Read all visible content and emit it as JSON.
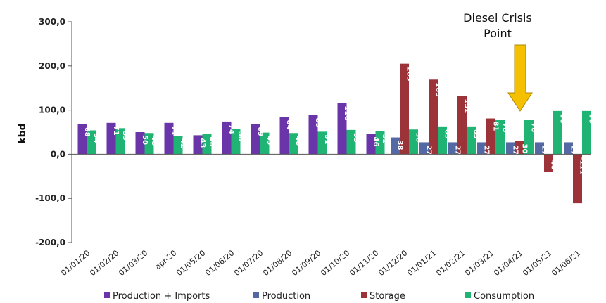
{
  "chart_data": {
    "type": "bar",
    "ylabel": "kbd",
    "ylim": [
      -200,
      300
    ],
    "yticks": [
      "-200,0",
      "-100,0",
      "0,0",
      "100,0",
      "200,0",
      "300,0"
    ],
    "ytick_values": [
      -200,
      -100,
      0,
      100,
      200,
      300
    ],
    "grid": false,
    "legend_position": "bottom",
    "categories": [
      "01/01/20",
      "01/02/20",
      "01/03/20",
      "apr-20",
      "01/05/20",
      "01/06/20",
      "01/07/20",
      "01/08/20",
      "01/09/20",
      "01/10/20",
      "01/11/20",
      "01/12/20",
      "01/01/21",
      "01/02/21",
      "01/03/21",
      "01/04/21",
      "01/05/21",
      "01/06/21"
    ],
    "series": [
      {
        "name": "Production + Imports",
        "color": "#6a35a8",
        "values": [
          68,
          71,
          50,
          71,
          43,
          74,
          69,
          84,
          89,
          116,
          46,
          null,
          null,
          null,
          null,
          null,
          null,
          null
        ],
        "labels": [
          "68",
          "71",
          "50",
          "71",
          "43",
          "74",
          "69",
          "84",
          "89",
          "116",
          "46",
          "",
          "",
          "",
          "",
          "",
          "",
          ""
        ]
      },
      {
        "name": "Production",
        "color": "#5468a4",
        "values": [
          null,
          null,
          null,
          null,
          null,
          null,
          null,
          null,
          null,
          null,
          null,
          38,
          27,
          27,
          27,
          27,
          27,
          27
        ],
        "labels": [
          "",
          "",
          "",
          "",
          "",
          "",
          "",
          "",
          "",
          "",
          "",
          "38",
          "27",
          "27",
          "27",
          "27",
          "27",
          "27"
        ]
      },
      {
        "name": "Storage",
        "color": "#9c3339",
        "values": [
          null,
          null,
          null,
          null,
          null,
          null,
          null,
          null,
          null,
          null,
          null,
          205,
          169,
          132,
          81,
          30,
          -40,
          -111
        ],
        "labels": [
          "",
          "",
          "",
          "",
          "",
          "",
          "",
          "",
          "",
          "",
          "",
          "205",
          "169",
          "132",
          "81",
          "30",
          "-40",
          "-111"
        ]
      },
      {
        "name": "Consumption",
        "color": "#1fb473",
        "values": [
          54,
          59,
          48,
          42,
          46,
          58,
          49,
          48,
          51,
          55,
          52,
          56,
          63,
          63,
          78,
          78,
          98,
          98
        ],
        "labels": [
          "54",
          "59",
          "48",
          "42",
          "46",
          "58",
          "49",
          "48",
          "51",
          "55",
          "52",
          "56",
          "63",
          "63",
          "78",
          "78",
          "98",
          "98"
        ]
      }
    ],
    "annotation": {
      "line1": "Diesel Crisis",
      "line2": "Point",
      "arrow_color": "#f5c000",
      "target_category": "01/04/21"
    }
  }
}
